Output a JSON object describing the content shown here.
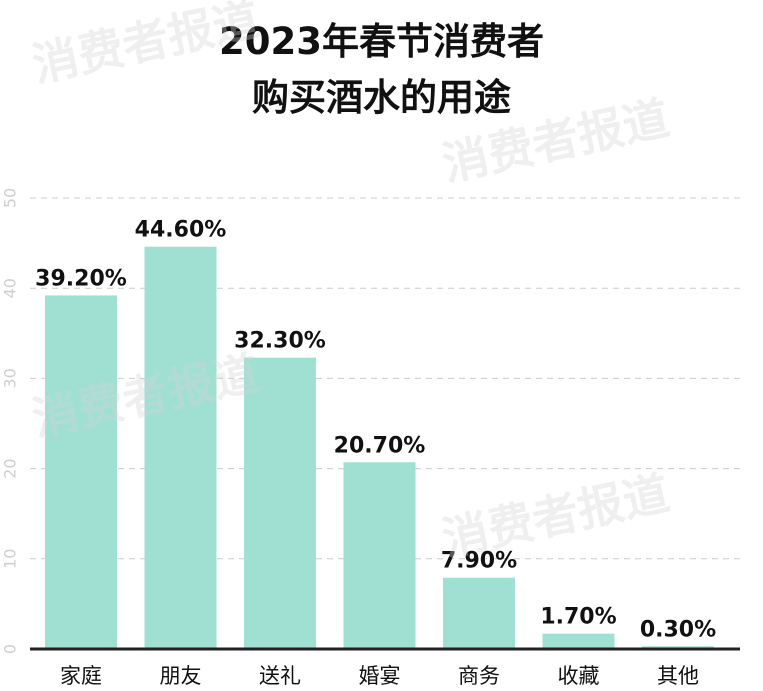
{
  "title_lines": [
    "2023年春节消费者",
    "购买酒水的用途"
  ],
  "watermarks": [
    "消费者报道",
    "消费者报道",
    "消费者报道",
    "消费者报道"
  ],
  "colors": {
    "bar": "#9fe0d3",
    "grid": "#cccccc",
    "axis": "#222222",
    "text": "#111111"
  },
  "chart_data": {
    "type": "bar",
    "title": "2023年春节消费者购买酒水的用途",
    "xlabel": "",
    "ylabel": "",
    "ylim": [
      0,
      50
    ],
    "yticks": [
      0,
      10,
      20,
      30,
      40,
      50
    ],
    "grid": true,
    "categories": [
      "家庭",
      "朋友",
      "送礼",
      "婚宴",
      "商务",
      "收藏",
      "其他"
    ],
    "values": [
      39.2,
      44.6,
      32.3,
      20.7,
      7.9,
      1.7,
      0.3
    ],
    "data_labels": [
      "39.20%",
      "44.60%",
      "32.30%",
      "20.70%",
      "7.90%",
      "1.70%",
      "0.30%"
    ]
  }
}
